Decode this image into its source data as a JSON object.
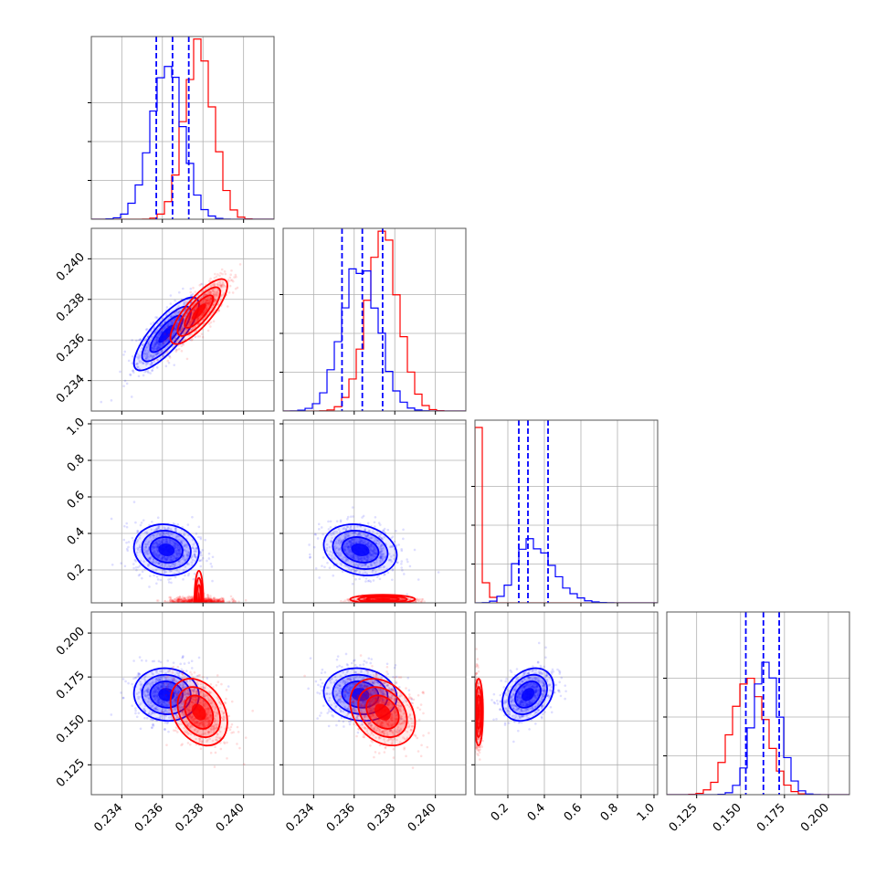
{
  "chart_data": {
    "type": "corner",
    "colors": {
      "series_a": "#0000ff",
      "series_b": "#ff0000"
    },
    "parameters": [
      {
        "index": 0,
        "range": [
          0.2325,
          0.2415
        ],
        "ticks": [
          0.234,
          0.236,
          0.238,
          0.24
        ],
        "tick_labels": [
          "0.234",
          "0.236",
          "0.238",
          "0.240"
        ]
      },
      {
        "index": 1,
        "range": [
          0.2325,
          0.2415
        ],
        "ticks": [
          0.234,
          0.236,
          0.238,
          0.24
        ],
        "tick_labels": [
          "0.234",
          "0.236",
          "0.238",
          "0.240"
        ]
      },
      {
        "index": 2,
        "range": [
          0.02,
          1.02
        ],
        "ticks": [
          0.2,
          0.4,
          0.6,
          0.8,
          1.0
        ],
        "tick_labels": [
          "0.2",
          "0.4",
          "0.6",
          "0.8",
          "1.0"
        ]
      },
      {
        "index": 3,
        "range": [
          0.108,
          0.212
        ],
        "ticks": [
          0.125,
          0.15,
          0.175,
          0.2
        ],
        "tick_labels": [
          "0.125",
          "0.150",
          "0.175",
          "0.200"
        ]
      }
    ],
    "series": [
      {
        "color": "#0000ff",
        "means": [
          0.2362,
          0.2363,
          0.31,
          0.165
        ],
        "stds": [
          0.0008,
          0.0009,
          0.07,
          0.0075
        ],
        "quantiles": [
          [
            0.2357,
            0.2365,
            0.2373
          ],
          [
            0.2354,
            0.2364,
            0.2374
          ],
          [
            0.26,
            0.31,
            0.42
          ],
          [
            0.153,
            0.163,
            0.172
          ]
        ],
        "hist_peaks": [
          0.84,
          0.81,
          0.34,
          0.73
        ]
      },
      {
        "color": "#ff0000",
        "means": [
          0.2378,
          0.2374,
          0.05,
          0.155
        ],
        "stds": [
          0.0007,
          0.0008,
          0.01,
          0.0095
        ],
        "quantiles": [],
        "hist_peaks": [
          0.98,
          0.98,
          0.96,
          0.66
        ]
      }
    ],
    "correlations": {
      "series_a": {
        "0-1": 0.8,
        "0-2": -0.1,
        "1-2": -0.2,
        "0-3": -0.05,
        "1-3": -0.1,
        "2-3": 0.3
      },
      "series_b": {
        "0-1": 0.8,
        "0-2": 0.0,
        "1-2": 0.0,
        "0-3": -0.3,
        "1-3": -0.3,
        "2-3": 0.0
      }
    },
    "grid": true,
    "title": "",
    "xlabel": "",
    "ylabel": ""
  }
}
